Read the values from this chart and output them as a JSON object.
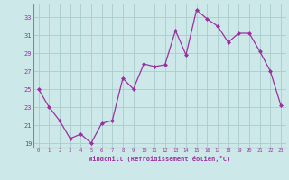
{
  "x": [
    0,
    1,
    2,
    3,
    4,
    5,
    6,
    7,
    8,
    9,
    10,
    11,
    12,
    13,
    14,
    15,
    16,
    17,
    18,
    19,
    20,
    21,
    22,
    23
  ],
  "y": [
    25,
    23,
    21.5,
    19.5,
    20,
    19.0,
    21.2,
    21.5,
    26.2,
    25.0,
    27.8,
    27.5,
    27.7,
    31.5,
    28.8,
    33.8,
    32.8,
    32.0,
    30.2,
    31.2,
    31.2,
    29.2,
    27.0,
    23.2
  ],
  "line_color": "#9b30a0",
  "marker": "D",
  "marker_color": "#9b30a0",
  "bg_color": "#cce8e8",
  "grid_color": "#aacccc",
  "axis_label_color": "#9b30a0",
  "tick_label_color": "#9b30a0",
  "xlabel": "Windchill (Refroidissement éolien,°C)",
  "ylim": [
    18.5,
    34.5
  ],
  "yticks": [
    19,
    21,
    23,
    25,
    27,
    29,
    31,
    33
  ],
  "xlim": [
    -0.5,
    23.5
  ],
  "xticks": [
    0,
    1,
    2,
    3,
    4,
    5,
    6,
    7,
    8,
    9,
    10,
    11,
    12,
    13,
    14,
    15,
    16,
    17,
    18,
    19,
    20,
    21,
    22,
    23
  ]
}
